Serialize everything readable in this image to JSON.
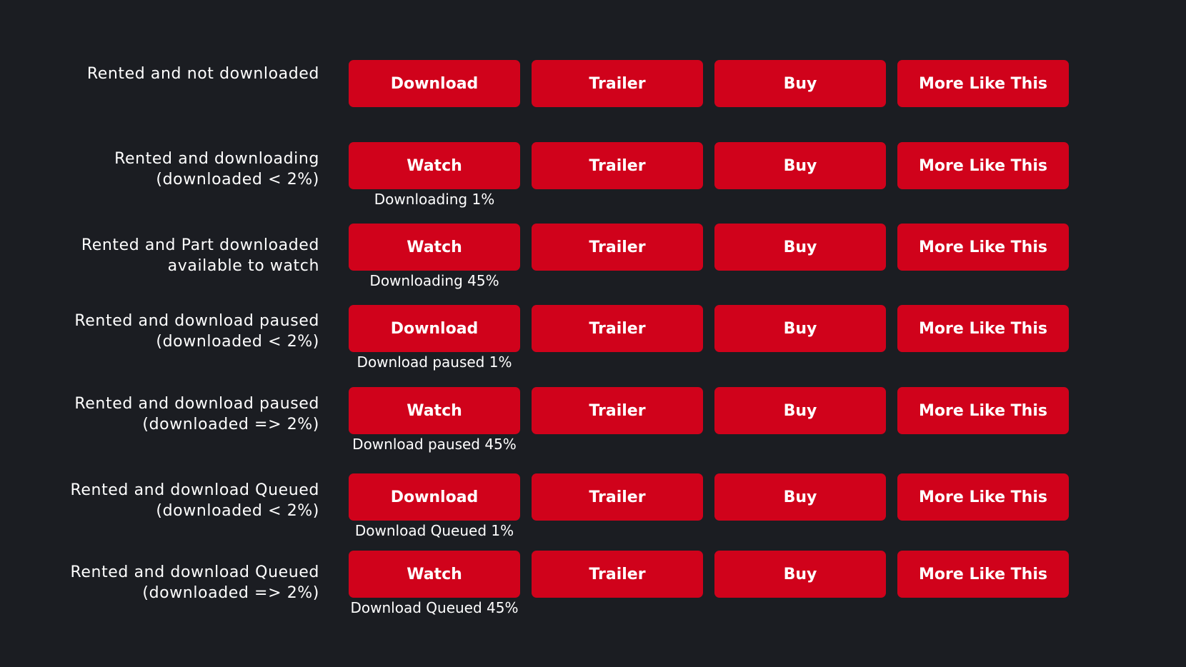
{
  "rows": [
    {
      "label": "Rented and not downloaded",
      "primary": "Download",
      "trailer": "Trailer",
      "buy": "Buy",
      "more": "More Like This",
      "status": ""
    },
    {
      "label": "Rented and downloading\n(downloaded < 2%)",
      "primary": "Watch",
      "trailer": "Trailer",
      "buy": "Buy",
      "more": "More Like This",
      "status": "Downloading 1%"
    },
    {
      "label": "Rented and Part downloaded\navailable to watch",
      "primary": "Watch",
      "trailer": "Trailer",
      "buy": "Buy",
      "more": "More Like This",
      "status": "Downloading 45%"
    },
    {
      "label": "Rented and download paused\n(downloaded < 2%)",
      "primary": "Download",
      "trailer": "Trailer",
      "buy": "Buy",
      "more": "More Like This",
      "status": "Download paused 1%"
    },
    {
      "label": "Rented and download paused\n(downloaded => 2%)",
      "primary": "Watch",
      "trailer": "Trailer",
      "buy": "Buy",
      "more": "More Like This",
      "status": "Download paused 45%"
    },
    {
      "label": "Rented and download Queued\n(downloaded < 2%)",
      "primary": "Download",
      "trailer": "Trailer",
      "buy": "Buy",
      "more": "More Like This",
      "status": "Download Queued 1%"
    },
    {
      "label": "Rented and download Queued\n(downloaded => 2%)",
      "primary": "Watch",
      "trailer": "Trailer",
      "buy": "Buy",
      "more": "More Like This",
      "status": "Download Queued 45%"
    }
  ],
  "colors": {
    "background": "#1b1d22",
    "button": "#d0021b",
    "text": "#ffffff"
  }
}
